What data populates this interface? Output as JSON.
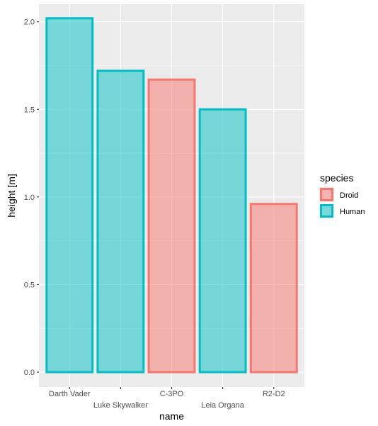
{
  "chart_data": {
    "type": "bar",
    "categories": [
      "Darth Vader",
      "Luke Skywalker",
      "C-3PO",
      "Leia Organa",
      "R2-D2"
    ],
    "values": [
      2.02,
      1.72,
      1.67,
      1.5,
      0.96
    ],
    "species": [
      "Human",
      "Human",
      "Droid",
      "Human",
      "Droid"
    ],
    "xlabel": "name",
    "ylabel": "height [m]",
    "ylim": [
      -0.085,
      2.1
    ],
    "yticks": [
      0.0,
      0.5,
      1.0,
      1.5,
      2.0
    ],
    "ytick_labels": [
      "0.0",
      "0.5",
      "1.0",
      "1.5",
      "2.0"
    ],
    "legend": {
      "title": "species",
      "position": "right",
      "entries": [
        {
          "label": "Droid",
          "outline": "#F8766D",
          "fill": "#F8766D"
        },
        {
          "label": "Human",
          "outline": "#00BFC4",
          "fill": "#00BFC4"
        }
      ]
    },
    "grid": true,
    "panel_background": "#EBEBEB",
    "grid_color": "#FFFFFF"
  }
}
